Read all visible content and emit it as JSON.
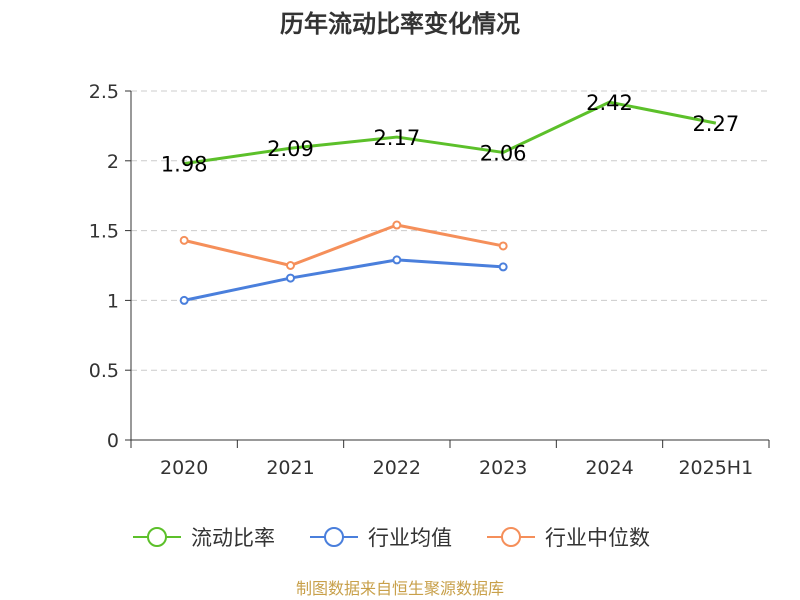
{
  "chart_data": {
    "type": "line",
    "title": "历年流动比率变化情况",
    "categories": [
      "2020",
      "2021",
      "2022",
      "2023",
      "2024",
      "2025H1"
    ],
    "ylim": [
      0,
      2.5
    ],
    "yticks": [
      "0",
      "0.5",
      "1",
      "1.5",
      "2",
      "2.5"
    ],
    "grid": true,
    "legend_position": "bottom",
    "series": [
      {
        "name": "流动比率",
        "color": "#5cc02a",
        "values": [
          1.98,
          2.09,
          2.17,
          2.06,
          2.42,
          2.27
        ],
        "labels": [
          "1.98",
          "2.09",
          "2.17",
          "2.06",
          "2.42",
          "2.27"
        ],
        "show_labels": true,
        "markers": false
      },
      {
        "name": "行业均值",
        "color": "#4a7fdc",
        "values": [
          1.0,
          1.16,
          1.29,
          1.24,
          null,
          null
        ],
        "show_labels": false,
        "markers": true
      },
      {
        "name": "行业中位数",
        "color": "#f58f5a",
        "values": [
          1.43,
          1.25,
          1.54,
          1.39,
          null,
          null
        ],
        "show_labels": false,
        "markers": true
      }
    ],
    "source": "制图数据来自恒生聚源数据库",
    "source_color": "#c8a04a"
  }
}
